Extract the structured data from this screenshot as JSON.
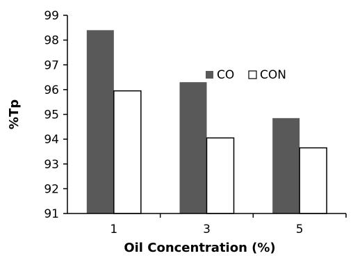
{
  "chart_data": {
    "type": "bar",
    "categories": [
      "1",
      "3",
      "5"
    ],
    "series": [
      {
        "name": "CO",
        "values": [
          98.4,
          96.3,
          94.85
        ],
        "color": "#595959"
      },
      {
        "name": "CON",
        "values": [
          95.95,
          94.05,
          93.65
        ],
        "color": "#ffffff"
      }
    ],
    "xlabel": "Oil Concentration (%)",
    "ylabel": "%Tp",
    "ylim": [
      91,
      99
    ],
    "yticks": [
      "91",
      "92",
      "93",
      "94",
      "95",
      "96",
      "97",
      "98",
      "99"
    ],
    "grid": false,
    "legend_position": "center-right"
  }
}
